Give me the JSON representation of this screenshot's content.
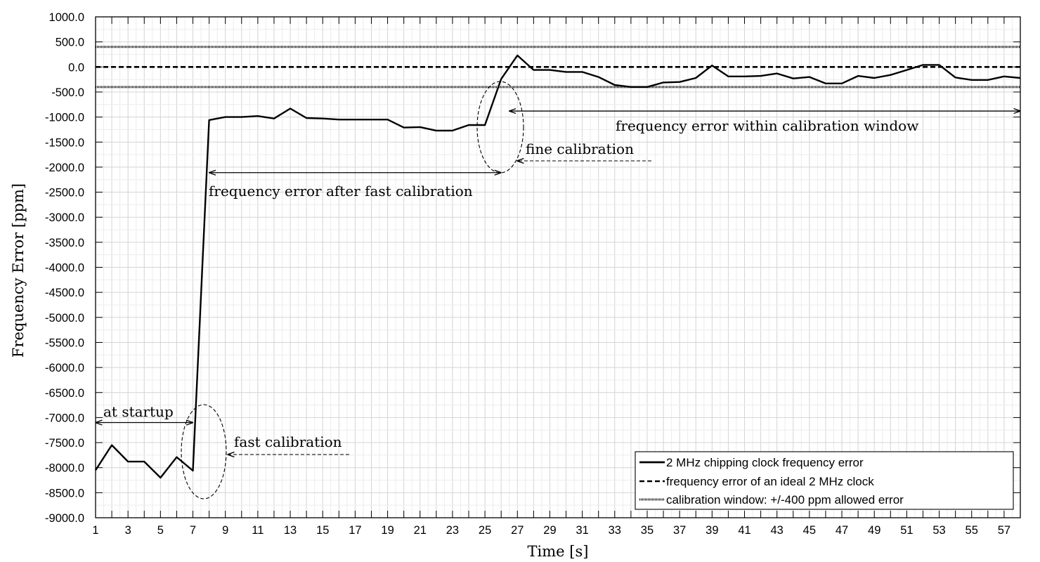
{
  "chart_data": {
    "type": "line",
    "xlabel": "Time [s]",
    "ylabel": "Frequency Error [ppm]",
    "xlim": [
      1,
      58
    ],
    "ylim": [
      -9000,
      1000
    ],
    "x_ticks": [
      1,
      3,
      5,
      7,
      9,
      11,
      13,
      15,
      17,
      19,
      21,
      23,
      25,
      27,
      29,
      31,
      33,
      35,
      37,
      39,
      41,
      43,
      45,
      47,
      49,
      51,
      53,
      55,
      57
    ],
    "y_ticks": [
      "1000.0",
      "500.0",
      "0.0",
      "-500.0",
      "-1000.0",
      "-1500.0",
      "-2000.0",
      "-2500.0",
      "-3000.0",
      "-3500.0",
      "-4000.0",
      "-4500.0",
      "-5000.0",
      "-5500.0",
      "-6000.0",
      "-6500.0",
      "-7000.0",
      "-7500.0",
      "-8000.0",
      "-8500.0",
      "-9000.0"
    ],
    "grid": true,
    "legend_position": "bottom-right",
    "series": [
      {
        "name": "2 MHz chipping clock frequency error",
        "style": "solid",
        "x": [
          1,
          2,
          3,
          4,
          5,
          6,
          7,
          8,
          9,
          10,
          11,
          12,
          13,
          14,
          15,
          16,
          17,
          18,
          19,
          20,
          21,
          22,
          23,
          24,
          25,
          26,
          27,
          28,
          29,
          30,
          31,
          32,
          33,
          34,
          35,
          36,
          37,
          38,
          39,
          40,
          41,
          42,
          43,
          44,
          45,
          46,
          47,
          48,
          49,
          50,
          51,
          52,
          53,
          54,
          55,
          56,
          57,
          58
        ],
        "values": [
          -8050,
          -7550,
          -7880,
          -7880,
          -8200,
          -7790,
          -8060,
          -1060,
          -1000,
          -1000,
          -980,
          -1030,
          -830,
          -1020,
          -1030,
          -1050,
          -1050,
          -1050,
          -1050,
          -1210,
          -1200,
          -1270,
          -1270,
          -1160,
          -1160,
          -240,
          230,
          -60,
          -60,
          -100,
          -100,
          -200,
          -360,
          -400,
          -400,
          -310,
          -300,
          -220,
          30,
          -190,
          -190,
          -180,
          -130,
          -230,
          -200,
          -330,
          -330,
          -180,
          -220,
          -160,
          -60,
          40,
          40,
          -210,
          -260,
          -260,
          -190,
          -220
        ]
      },
      {
        "name": "frequency error of an ideal 2 MHz clock",
        "style": "dashed",
        "x": [
          1,
          58
        ],
        "values": [
          0,
          0
        ]
      },
      {
        "name": "calibration window: +/-400 ppm allowed error",
        "style": "dotted",
        "bands": [
          400,
          -400
        ]
      }
    ],
    "annotations": [
      {
        "label": "at startup",
        "type": "double-arrow",
        "x_from": 1,
        "x_to": 7,
        "y": -7100
      },
      {
        "label": "fast calibration",
        "type": "dashed-arrow-to-ellipse",
        "ellipse_x": 7.5,
        "ellipse_y": -7690
      },
      {
        "label": "frequency error after fast calibration",
        "type": "double-arrow",
        "x_from": 8,
        "x_to": 26,
        "y": -2110
      },
      {
        "label": "fine calibration",
        "type": "dashed-arrow-to-ellipse",
        "ellipse_x": 26,
        "ellipse_y": -1200
      },
      {
        "label": "frequency error within calibration window",
        "type": "double-arrow",
        "x_from": 26.5,
        "x_to": 58,
        "y": -880
      }
    ]
  }
}
